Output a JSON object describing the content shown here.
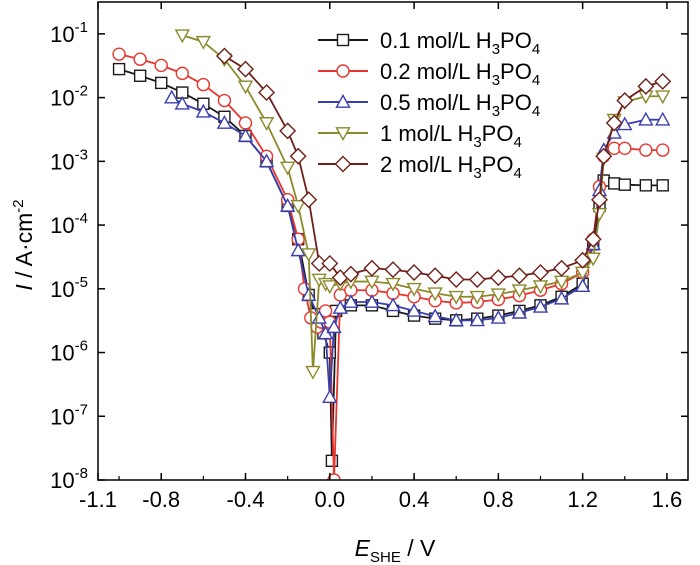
{
  "chart_data": {
    "type": "line",
    "title": "",
    "xlabel": {
      "main": "E",
      "sub": "SHE",
      "unit": " / V"
    },
    "ylabel": {
      "main": "I",
      "unit": " / A·cm",
      "sup": "-2"
    },
    "x_ticks": [
      "-1.1",
      "-0.8",
      "-0.4",
      "0.0",
      "0.4",
      "0.8",
      "1.2",
      "1.6"
    ],
    "y_ticks": [
      {
        "base": "10",
        "exp": "-8"
      },
      {
        "base": "10",
        "exp": "-7"
      },
      {
        "base": "10",
        "exp": "-6"
      },
      {
        "base": "10",
        "exp": "-5"
      },
      {
        "base": "10",
        "exp": "-4"
      },
      {
        "base": "10",
        "exp": "-3"
      },
      {
        "base": "10",
        "exp": "-2"
      },
      {
        "base": "10",
        "exp": "-1"
      }
    ],
    "xlim": [
      -1.1,
      1.7
    ],
    "ylim_log10": [
      -8,
      -0.5
    ],
    "y_scale": "log",
    "grid": false,
    "legend_position": "top-right",
    "series": [
      {
        "name": "0.1 mol/L H3PO4",
        "label_parts": [
          "0.1 mol/L H",
          "3",
          "PO",
          "4"
        ],
        "color": "#1a1a1a",
        "marker": "square",
        "x": [
          -1.0,
          -0.9,
          -0.8,
          -0.7,
          -0.6,
          -0.5,
          -0.4,
          -0.3,
          -0.2,
          -0.15,
          -0.1,
          -0.07,
          -0.03,
          0.0,
          0.01,
          0.03,
          0.1,
          0.2,
          0.3,
          0.4,
          0.5,
          0.6,
          0.7,
          0.8,
          0.9,
          1.0,
          1.1,
          1.2,
          1.25,
          1.28,
          1.3,
          1.35,
          1.4,
          1.5,
          1.58
        ],
        "y": [
          0.028,
          0.022,
          0.017,
          0.012,
          0.008,
          0.005,
          0.0025,
          0.001,
          0.0002,
          6e-05,
          8e-06,
          4e-06,
          2e-06,
          1e-06,
          2e-08,
          4.5e-06,
          5.5e-06,
          5.5e-06,
          4.5e-06,
          3.8e-06,
          3.4e-06,
          3.2e-06,
          3.4e-06,
          3.8e-06,
          4.5e-06,
          5.5e-06,
          7.5e-06,
          1.2e-05,
          5e-05,
          0.0002,
          0.0005,
          0.00045,
          0.00043,
          0.00042,
          0.00042
        ]
      },
      {
        "name": "0.2 mol/L H3PO4",
        "label_parts": [
          "0.2 mol/L H",
          "3",
          "PO",
          "4"
        ],
        "color": "#e8352e",
        "marker": "circle",
        "x": [
          -1.0,
          -0.9,
          -0.8,
          -0.7,
          -0.6,
          -0.5,
          -0.4,
          -0.3,
          -0.2,
          -0.15,
          -0.12,
          -0.09,
          -0.06,
          -0.04,
          -0.02,
          0.0,
          0.02,
          0.05,
          0.1,
          0.2,
          0.3,
          0.4,
          0.5,
          0.6,
          0.7,
          0.8,
          0.9,
          1.0,
          1.1,
          1.2,
          1.25,
          1.28,
          1.3,
          1.35,
          1.4,
          1.5,
          1.58
        ],
        "y": [
          0.048,
          0.04,
          0.032,
          0.024,
          0.016,
          0.009,
          0.004,
          0.0012,
          0.00025,
          6e-05,
          1e-05,
          3.5e-06,
          2.5e-06,
          3e-06,
          4.5e-06,
          3e-06,
          1e-08,
          8e-06,
          9.5e-06,
          9.5e-06,
          8.5e-06,
          7.5e-06,
          6.5e-06,
          6e-06,
          6.2e-06,
          6.8e-06,
          7.8e-06,
          9.5e-06,
          1.2e-05,
          1.8e-05,
          6e-05,
          0.0004,
          0.0012,
          0.0016,
          0.0016,
          0.0015,
          0.0015
        ]
      },
      {
        "name": "0.5 mol/L H3PO4",
        "label_parts": [
          "0.5 mol/L H",
          "3",
          "PO",
          "4"
        ],
        "color": "#3a3fb0",
        "marker": "triangle-up",
        "x": [
          -0.75,
          -0.7,
          -0.6,
          -0.5,
          -0.4,
          -0.3,
          -0.2,
          -0.15,
          -0.1,
          -0.05,
          -0.02,
          0.0,
          0.02,
          0.05,
          0.1,
          0.2,
          0.3,
          0.4,
          0.5,
          0.6,
          0.7,
          0.8,
          0.9,
          1.0,
          1.1,
          1.2,
          1.25,
          1.28,
          1.3,
          1.35,
          1.4,
          1.5,
          1.58
        ],
        "y": [
          0.01,
          0.008,
          0.006,
          0.004,
          0.0025,
          0.001,
          0.0002,
          4e-05,
          8e-06,
          3.5e-06,
          2e-06,
          2e-07,
          2.5e-06,
          5e-06,
          6.2e-06,
          6.2e-06,
          5.5e-06,
          4.5e-06,
          3.7e-06,
          3.2e-06,
          3.2e-06,
          3.5e-06,
          4.2e-06,
          5.2e-06,
          7e-06,
          1.1e-05,
          5e-05,
          0.00035,
          0.0015,
          0.0028,
          0.0038,
          0.0045,
          0.0045
        ]
      },
      {
        "name": "1 mol/L H3PO4",
        "label_parts": [
          "1 mol/L H",
          "3",
          "PO",
          "4"
        ],
        "color": "#8b8a2a",
        "marker": "triangle-down",
        "x": [
          -0.7,
          -0.6,
          -0.5,
          -0.4,
          -0.3,
          -0.2,
          -0.15,
          -0.1,
          -0.08,
          -0.05,
          -0.02,
          0.0,
          0.05,
          0.1,
          0.2,
          0.3,
          0.4,
          0.5,
          0.6,
          0.7,
          0.8,
          0.9,
          1.0,
          1.1,
          1.2,
          1.25,
          1.28,
          1.3,
          1.35,
          1.4,
          1.5,
          1.58
        ],
        "y": [
          0.095,
          0.075,
          0.04,
          0.015,
          0.004,
          0.0008,
          0.0002,
          3.5e-05,
          5e-07,
          1.4e-05,
          1.2e-05,
          1.1e-05,
          1.2e-05,
          1.3e-05,
          1.3e-05,
          1.2e-05,
          1e-05,
          8.5e-06,
          7.5e-06,
          7.5e-06,
          8.2e-06,
          9.5e-06,
          1.1e-05,
          1.3e-05,
          1.8e-05,
          3e-05,
          0.00015,
          0.0011,
          0.0045,
          0.0085,
          0.0105,
          0.0105
        ]
      },
      {
        "name": "2 mol/L H3PO4",
        "label_parts": [
          "2 mol/L H",
          "3",
          "PO",
          "4"
        ],
        "color": "#6e1f1a",
        "marker": "diamond",
        "x": [
          -0.5,
          -0.4,
          -0.3,
          -0.2,
          -0.15,
          -0.1,
          -0.05,
          0.0,
          0.05,
          0.1,
          0.2,
          0.3,
          0.4,
          0.5,
          0.6,
          0.7,
          0.8,
          0.9,
          1.0,
          1.1,
          1.2,
          1.25,
          1.28,
          1.3,
          1.35,
          1.4,
          1.5,
          1.58
        ],
        "y": [
          0.045,
          0.028,
          0.012,
          0.003,
          0.0012,
          0.00025,
          2.5e-05,
          2.5e-05,
          1.5e-05,
          1.7e-05,
          2.1e-05,
          2e-05,
          1.8e-05,
          1.6e-05,
          1.4e-05,
          1.4e-05,
          1.5e-05,
          1.6e-05,
          1.8e-05,
          2.1e-05,
          2.8e-05,
          6e-05,
          0.00025,
          0.0012,
          0.004,
          0.009,
          0.015,
          0.018
        ]
      }
    ]
  }
}
